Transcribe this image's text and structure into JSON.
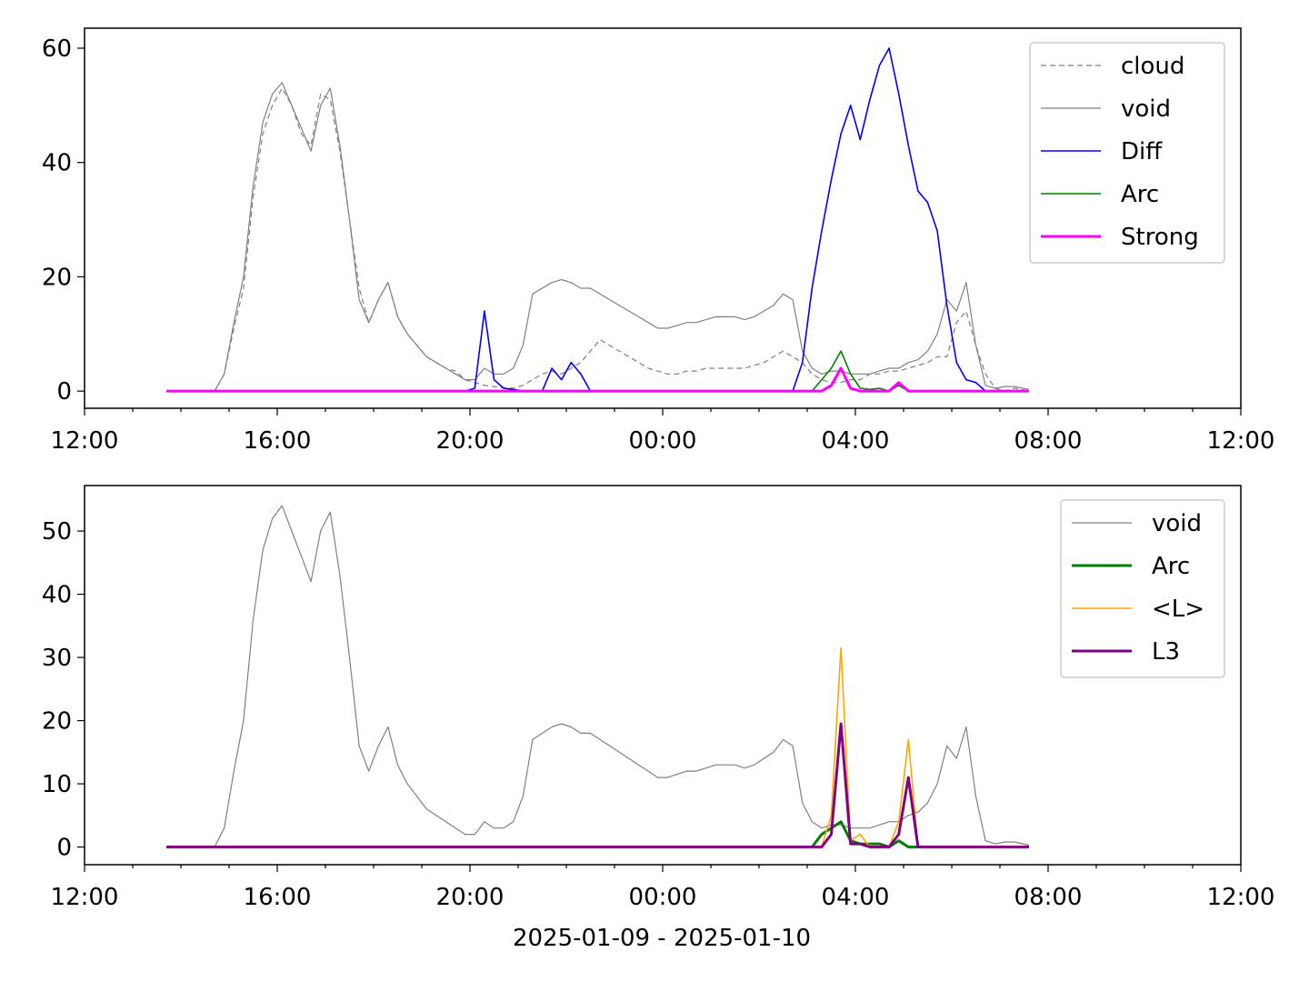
{
  "chart_data": [
    {
      "type": "line",
      "x_domain": [
        "2025-01-09 12:00",
        "2025-01-10 12:00"
      ],
      "x_ticks": [
        "12:00",
        "16:00",
        "20:00",
        "00:00",
        "04:00",
        "08:00",
        "12:00"
      ],
      "x_tick_hours": [
        0,
        4,
        8,
        12,
        16,
        20,
        24
      ],
      "xlabel": "",
      "ylim": [
        -3,
        63.5
      ],
      "y_ticks": [
        0,
        20,
        40,
        60
      ],
      "grid": false,
      "legend": "top-right",
      "x_hours": [
        1.7,
        2.7,
        2.9,
        3.1,
        3.3,
        3.5,
        3.7,
        3.9,
        4.1,
        4.3,
        4.5,
        4.7,
        4.9,
        5.1,
        5.3,
        5.5,
        5.7,
        5.9,
        6.1,
        6.3,
        6.5,
        6.7,
        6.9,
        7.1,
        7.3,
        7.5,
        7.7,
        7.9,
        8.1,
        8.3,
        8.5,
        8.7,
        8.9,
        9.1,
        9.3,
        9.5,
        9.7,
        9.9,
        10.1,
        10.3,
        10.5,
        10.7,
        10.9,
        11.1,
        11.3,
        11.5,
        11.7,
        11.9,
        12.1,
        12.3,
        12.5,
        12.7,
        12.9,
        13.1,
        13.3,
        13.5,
        13.7,
        13.9,
        14.1,
        14.3,
        14.5,
        14.7,
        14.9,
        15.1,
        15.3,
        15.5,
        15.7,
        15.9,
        16.1,
        16.3,
        16.5,
        16.7,
        16.9,
        17.1,
        17.3,
        17.5,
        17.7,
        17.9,
        18.1,
        18.3,
        18.5,
        18.7,
        18.9,
        19.1,
        19.3,
        19.6
      ],
      "series": [
        {
          "name": "cloud",
          "color": "#808080",
          "style": "dashed",
          "width": 1.2,
          "values": [
            0,
            0,
            3,
            11,
            18,
            34,
            45,
            50,
            53,
            50,
            45,
            43,
            52,
            51,
            42,
            30,
            18,
            12,
            16,
            19,
            13,
            10,
            8,
            6,
            5,
            4,
            3.5,
            2,
            1.5,
            1,
            0.8,
            0.6,
            0.5,
            1,
            2,
            3,
            3.5,
            3,
            4,
            5,
            7,
            9,
            8,
            7,
            6,
            5,
            4,
            3.5,
            3,
            3,
            3.5,
            3.5,
            4,
            4,
            4,
            4,
            4,
            4.5,
            5,
            6,
            7,
            6,
            5,
            3,
            2,
            1.5,
            1.5,
            2,
            2,
            3,
            3,
            3.5,
            3.5,
            4,
            4.5,
            5,
            6,
            6,
            12,
            14,
            8,
            3,
            0.5,
            0,
            0.5,
            0
          ]
        },
        {
          "name": "void",
          "color": "#808080",
          "style": "solid",
          "width": 1.2,
          "values": [
            0,
            0,
            3,
            12,
            20,
            36,
            47,
            52,
            54,
            50,
            46,
            42,
            50,
            53,
            43,
            30,
            16,
            12,
            16,
            19,
            13,
            10,
            8,
            6,
            5,
            4,
            3,
            2,
            2,
            4,
            3,
            3,
            4,
            8,
            17,
            18,
            19,
            19.5,
            19,
            18,
            18,
            17,
            16,
            15,
            14,
            13,
            12,
            11,
            11,
            11.5,
            12,
            12,
            12.5,
            13,
            13,
            13,
            12.5,
            13,
            14,
            15,
            17,
            16,
            7,
            4,
            3,
            3.5,
            3.5,
            3,
            3,
            3,
            3.5,
            4,
            4,
            5,
            5.5,
            7,
            10,
            16,
            14,
            19,
            8,
            1,
            0.5,
            0.8,
            0.8,
            0.3
          ]
        },
        {
          "name": "Diff",
          "color": "#0000ff",
          "style": "solid",
          "width": 1.6,
          "values": [
            0,
            0,
            0,
            0,
            0,
            0,
            0,
            0,
            0,
            0,
            0,
            0,
            0,
            0,
            0,
            0,
            0,
            0,
            0,
            0,
            0,
            0,
            0,
            0,
            0,
            0,
            0,
            0,
            0.5,
            14,
            2,
            0.5,
            0.3,
            0,
            0,
            0,
            4,
            2,
            5,
            3,
            0,
            0,
            0,
            0,
            0,
            0,
            0,
            0,
            0,
            0,
            0,
            0,
            0,
            0,
            0,
            0,
            0,
            0,
            0,
            0,
            0,
            0,
            5,
            18,
            28,
            37,
            45,
            50,
            44,
            51,
            57,
            60,
            52,
            43,
            35,
            33,
            28,
            15,
            5,
            2,
            1.5,
            0,
            0,
            0,
            0,
            0
          ]
        },
        {
          "name": "Arc",
          "color": "#008000",
          "style": "solid",
          "width": 1.6,
          "values": [
            0,
            0,
            0,
            0,
            0,
            0,
            0,
            0,
            0,
            0,
            0,
            0,
            0,
            0,
            0,
            0,
            0,
            0,
            0,
            0,
            0,
            0,
            0,
            0,
            0,
            0,
            0,
            0,
            0,
            0,
            0,
            0,
            0,
            0,
            0,
            0,
            0,
            0,
            0,
            0,
            0,
            0,
            0,
            0,
            0,
            0,
            0,
            0,
            0,
            0,
            0,
            0,
            0,
            0,
            0,
            0,
            0,
            0,
            0,
            0,
            0,
            0,
            0,
            0,
            2,
            4,
            7,
            3,
            0.5,
            0.3,
            0.5,
            0,
            1,
            0,
            0,
            0,
            0,
            0,
            0,
            0,
            0,
            0,
            0,
            0,
            0,
            0
          ]
        },
        {
          "name": "Strong",
          "color": "#ff00ff",
          "style": "solid",
          "width": 3,
          "values": [
            0,
            0,
            0,
            0,
            0,
            0,
            0,
            0,
            0,
            0,
            0,
            0,
            0,
            0,
            0,
            0,
            0,
            0,
            0,
            0,
            0,
            0,
            0,
            0,
            0,
            0,
            0,
            0,
            0,
            0,
            0,
            0,
            0,
            0,
            0,
            0,
            0,
            0,
            0,
            0,
            0,
            0,
            0,
            0,
            0,
            0,
            0,
            0,
            0,
            0,
            0,
            0,
            0,
            0,
            0,
            0,
            0,
            0,
            0,
            0,
            0,
            0,
            0,
            0,
            0,
            1,
            4,
            0.5,
            0,
            0,
            0,
            0,
            1.5,
            0,
            0,
            0,
            0,
            0,
            0,
            0,
            0,
            0,
            0,
            0,
            0,
            0
          ]
        }
      ],
      "legend_entries": [
        "cloud",
        "void",
        "Diff",
        "Arc",
        "Strong"
      ]
    },
    {
      "type": "line",
      "x_domain": [
        "2025-01-09 12:00",
        "2025-01-10 12:00"
      ],
      "x_ticks": [
        "12:00",
        "16:00",
        "20:00",
        "00:00",
        "04:00",
        "08:00",
        "12:00"
      ],
      "x_tick_hours": [
        0,
        4,
        8,
        12,
        16,
        20,
        24
      ],
      "xlabel": "2025-01-09 - 2025-01-10",
      "ylim": [
        -2.8,
        57.2
      ],
      "y_ticks": [
        0,
        10,
        20,
        30,
        40,
        50
      ],
      "grid": false,
      "legend": "top-right",
      "x_hours": [
        1.7,
        2.7,
        2.9,
        3.1,
        3.3,
        3.5,
        3.7,
        3.9,
        4.1,
        4.3,
        4.5,
        4.7,
        4.9,
        5.1,
        5.3,
        5.5,
        5.7,
        5.9,
        6.1,
        6.3,
        6.5,
        6.7,
        6.9,
        7.1,
        7.3,
        7.5,
        7.7,
        7.9,
        8.1,
        8.3,
        8.5,
        8.7,
        8.9,
        9.1,
        9.3,
        9.5,
        9.7,
        9.9,
        10.1,
        10.3,
        10.5,
        10.7,
        10.9,
        11.1,
        11.3,
        11.5,
        11.7,
        11.9,
        12.1,
        12.3,
        12.5,
        12.7,
        12.9,
        13.1,
        13.3,
        13.5,
        13.7,
        13.9,
        14.1,
        14.3,
        14.5,
        14.7,
        14.9,
        15.1,
        15.3,
        15.5,
        15.7,
        15.9,
        16.1,
        16.3,
        16.5,
        16.7,
        16.9,
        17.1,
        17.3,
        17.5,
        17.7,
        17.9,
        18.1,
        18.3,
        18.5,
        18.7,
        18.9,
        19.1,
        19.3,
        19.6
      ],
      "series": [
        {
          "name": "void",
          "color": "#808080",
          "style": "solid",
          "width": 1.2,
          "values": [
            0,
            0,
            3,
            12,
            20,
            36,
            47,
            52,
            54,
            50,
            46,
            42,
            50,
            53,
            43,
            30,
            16,
            12,
            16,
            19,
            13,
            10,
            8,
            6,
            5,
            4,
            3,
            2,
            2,
            4,
            3,
            3,
            4,
            8,
            17,
            18,
            19,
            19.5,
            19,
            18,
            18,
            17,
            16,
            15,
            14,
            13,
            12,
            11,
            11,
            11.5,
            12,
            12,
            12.5,
            13,
            13,
            13,
            12.5,
            13,
            14,
            15,
            17,
            16,
            7,
            4,
            3,
            3.5,
            3.5,
            3,
            3,
            3,
            3.5,
            4,
            4,
            5,
            5.5,
            7,
            10,
            16,
            14,
            19,
            8,
            1,
            0.5,
            0.8,
            0.8,
            0.3
          ]
        },
        {
          "name": "Arc",
          "color": "#008000",
          "style": "solid",
          "width": 3,
          "values": [
            0,
            0,
            0,
            0,
            0,
            0,
            0,
            0,
            0,
            0,
            0,
            0,
            0,
            0,
            0,
            0,
            0,
            0,
            0,
            0,
            0,
            0,
            0,
            0,
            0,
            0,
            0,
            0,
            0,
            0,
            0,
            0,
            0,
            0,
            0,
            0,
            0,
            0,
            0,
            0,
            0,
            0,
            0,
            0,
            0,
            0,
            0,
            0,
            0,
            0,
            0,
            0,
            0,
            0,
            0,
            0,
            0,
            0,
            0,
            0,
            0,
            0,
            0,
            0,
            2,
            3,
            4,
            1,
            0.5,
            0.5,
            0.5,
            0,
            1,
            0,
            0,
            0,
            0,
            0,
            0,
            0,
            0,
            0,
            0,
            0,
            0,
            0
          ]
        },
        {
          "name": "<L>",
          "color": "#ffa500",
          "style": "solid",
          "width": 1.6,
          "values": [
            0,
            0,
            0,
            0,
            0,
            0,
            0,
            0,
            0,
            0,
            0,
            0,
            0,
            0,
            0,
            0,
            0,
            0,
            0,
            0,
            0,
            0,
            0,
            0,
            0,
            0,
            0,
            0,
            0,
            0,
            0,
            0,
            0,
            0,
            0,
            0,
            0,
            0,
            0,
            0,
            0,
            0,
            0,
            0,
            0,
            0,
            0,
            0,
            0,
            0,
            0,
            0,
            0,
            0,
            0,
            0,
            0,
            0,
            0,
            0,
            0,
            0,
            0,
            0,
            0,
            5,
            31.5,
            1,
            2,
            0,
            0,
            0,
            4,
            17,
            0,
            0,
            0,
            0,
            0,
            0,
            0,
            0,
            0,
            0,
            0,
            0
          ]
        },
        {
          "name": "L3",
          "color": "#800080",
          "style": "solid",
          "width": 3,
          "values": [
            0,
            0,
            0,
            0,
            0,
            0,
            0,
            0,
            0,
            0,
            0,
            0,
            0,
            0,
            0,
            0,
            0,
            0,
            0,
            0,
            0,
            0,
            0,
            0,
            0,
            0,
            0,
            0,
            0,
            0,
            0,
            0,
            0,
            0,
            0,
            0,
            0,
            0,
            0,
            0,
            0,
            0,
            0,
            0,
            0,
            0,
            0,
            0,
            0,
            0,
            0,
            0,
            0,
            0,
            0,
            0,
            0,
            0,
            0,
            0,
            0,
            0,
            0,
            0,
            0,
            2,
            19.5,
            0.5,
            0.5,
            0,
            0,
            0,
            2,
            11,
            0,
            0,
            0,
            0,
            0,
            0,
            0,
            0,
            0,
            0,
            0,
            0
          ]
        }
      ],
      "legend_entries": [
        "void",
        "Arc",
        "<L>",
        "L3"
      ]
    }
  ]
}
